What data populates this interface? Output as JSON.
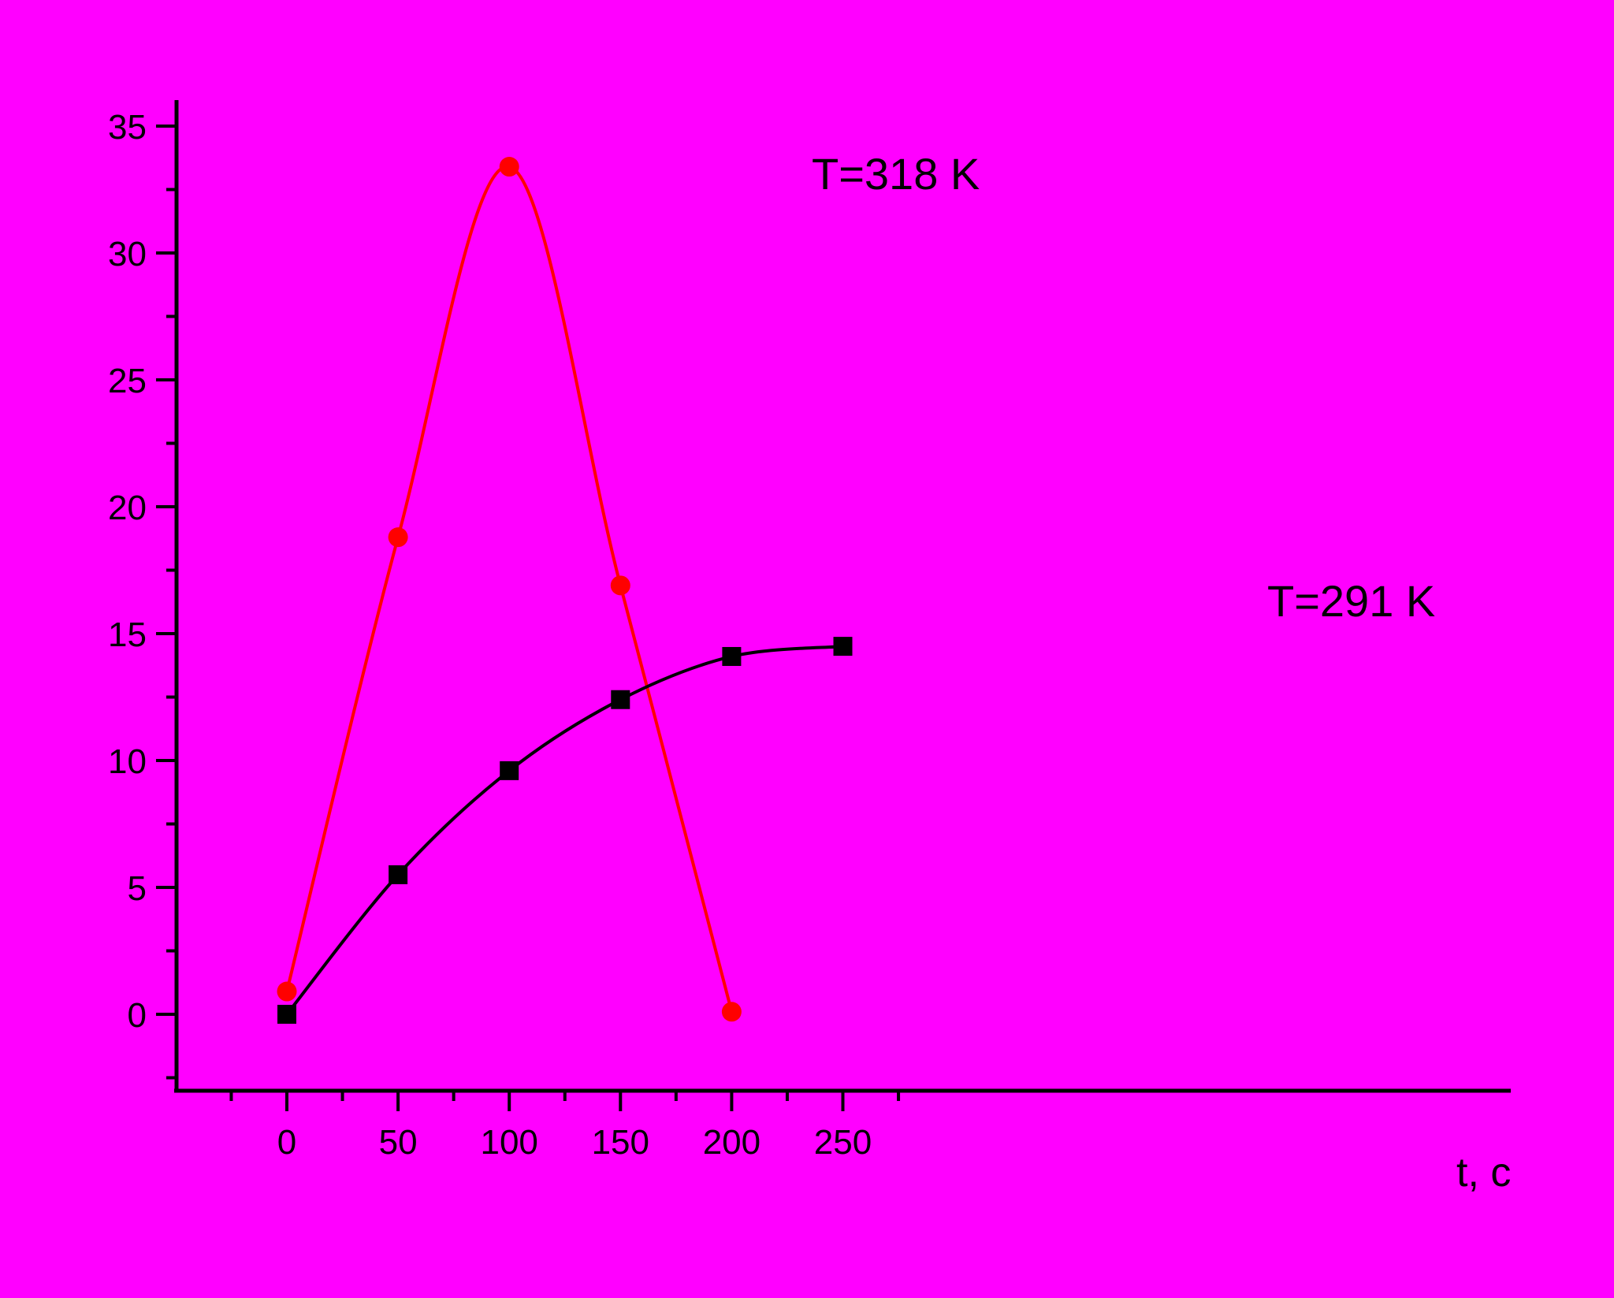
{
  "chart_data": {
    "type": "line",
    "background_color": "#ff00ff",
    "x_label": "t, c",
    "x_ticks": [
      0,
      50,
      100,
      150,
      200,
      250
    ],
    "y_ticks": [
      0,
      5,
      10,
      15,
      20,
      25,
      30,
      35
    ],
    "xlim": [
      -25,
      275
    ],
    "ylim": [
      -3,
      36
    ],
    "grid": false,
    "series": [
      {
        "name": "T=318 K",
        "color": "#ff0000",
        "marker": "circle",
        "x": [
          0,
          50,
          100,
          150,
          200
        ],
        "y": [
          0.9,
          18.8,
          33.4,
          16.9,
          0.1
        ]
      },
      {
        "name": "T=291 K",
        "color": "#000000",
        "marker": "square",
        "x": [
          0,
          50,
          100,
          150,
          200,
          250
        ],
        "y": [
          0.0,
          5.5,
          9.6,
          12.4,
          14.1,
          14.5
        ]
      }
    ]
  }
}
